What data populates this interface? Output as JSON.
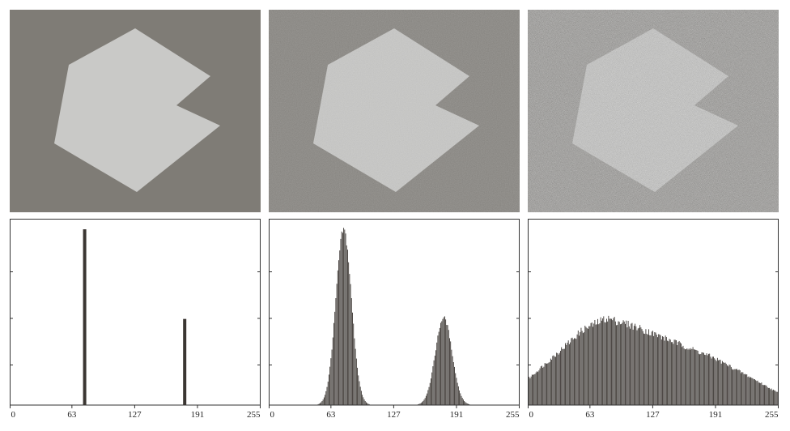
{
  "figure": {
    "background": "#ffffff",
    "image_background_color": "#7f7c76",
    "shape_color": "#c9c9c7",
    "bar_color": "#3b3632",
    "noise_levels": [
      "none",
      "low",
      "high"
    ]
  },
  "chart_data": [
    {
      "type": "bar",
      "title": "",
      "xlabel": "",
      "ylabel": "",
      "xlim": [
        0,
        255
      ],
      "x_ticks": [
        0,
        63,
        127,
        191,
        255
      ],
      "y_ticks_visible": false,
      "grid": false,
      "series": [
        {
          "values": [
            {
              "x": 76,
              "y": 1.0
            },
            {
              "x": 178,
              "y": 0.49
            }
          ]
        }
      ]
    },
    {
      "type": "bar",
      "title": "",
      "xlabel": "",
      "ylabel": "",
      "xlim": [
        0,
        255
      ],
      "x_ticks": [
        0,
        63,
        127,
        191,
        255
      ],
      "y_ticks_visible": false,
      "grid": false,
      "distribution": "two gaussian peaks",
      "peaks": [
        {
          "center": 76,
          "spread": 8,
          "height": 1.0
        },
        {
          "center": 178,
          "spread": 8.5,
          "height": 0.5
        }
      ]
    },
    {
      "type": "bar",
      "title": "",
      "xlabel": "",
      "ylabel": "",
      "xlim": [
        0,
        255
      ],
      "x_ticks": [
        0,
        63,
        127,
        191,
        255
      ],
      "y_ticks_visible": false,
      "grid": false,
      "distribution": "broad merged unimodal",
      "profile": [
        {
          "x": 0,
          "y": 0.15
        },
        {
          "x": 30,
          "y": 0.3
        },
        {
          "x": 55,
          "y": 0.43
        },
        {
          "x": 80,
          "y": 0.5
        },
        {
          "x": 110,
          "y": 0.45
        },
        {
          "x": 150,
          "y": 0.36
        },
        {
          "x": 190,
          "y": 0.27
        },
        {
          "x": 230,
          "y": 0.15
        },
        {
          "x": 255,
          "y": 0.07
        }
      ]
    }
  ]
}
